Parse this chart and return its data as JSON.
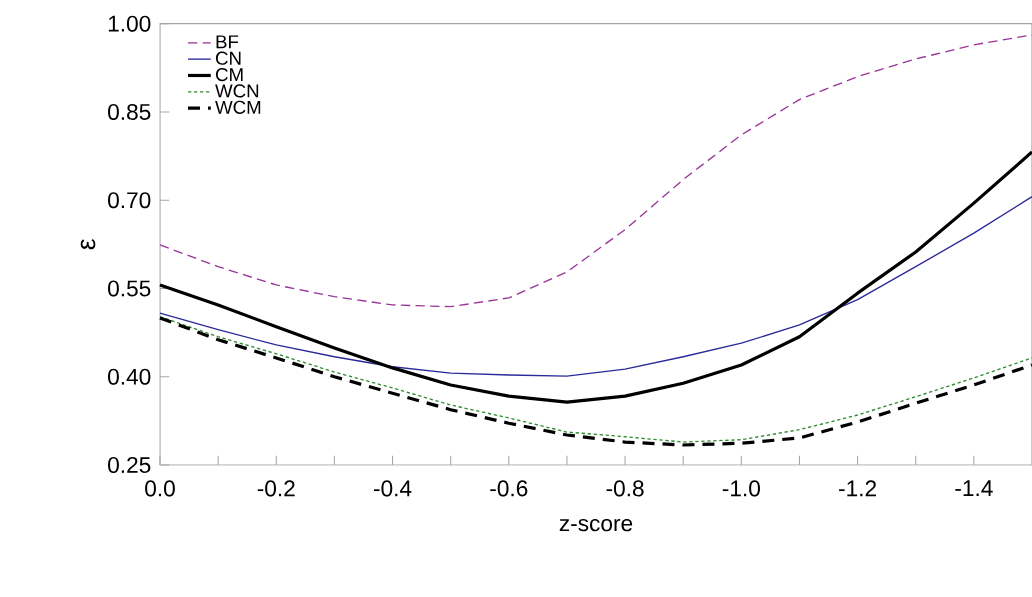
{
  "chart_data": {
    "type": "line",
    "xlabel": "z-score",
    "ylabel": "ε",
    "x": [
      0,
      -0.1,
      -0.2,
      -0.3,
      -0.4,
      -0.5,
      -0.6,
      -0.7,
      -0.8,
      -0.9,
      -1.0,
      -1.1,
      -1.2,
      -1.3,
      -1.4,
      -1.5
    ],
    "series": [
      {
        "name": "BF",
        "color": "#993399",
        "line_style": "dashed",
        "values": [
          0.624,
          0.587,
          0.556,
          0.536,
          0.522,
          0.519,
          0.534,
          0.578,
          0.65,
          0.735,
          0.811,
          0.871,
          0.91,
          0.94,
          0.964,
          0.981
        ]
      },
      {
        "name": "CN",
        "color": "#2a2a9a",
        "line_style": "solid",
        "values": [
          0.508,
          0.48,
          0.454,
          0.434,
          0.417,
          0.406,
          0.403,
          0.401,
          0.413,
          0.434,
          0.457,
          0.488,
          0.531,
          0.587,
          0.644,
          0.706
        ]
      },
      {
        "name": "CM",
        "color": "#000000",
        "line_style": "solid",
        "values": [
          0.556,
          0.522,
          0.485,
          0.449,
          0.415,
          0.386,
          0.367,
          0.357,
          0.367,
          0.389,
          0.42,
          0.468,
          0.542,
          0.612,
          0.695,
          0.782
        ]
      },
      {
        "name": "WCN",
        "color": "#2e8b2e",
        "line_style": "dotted",
        "values": [
          0.502,
          0.468,
          0.439,
          0.408,
          0.381,
          0.352,
          0.33,
          0.306,
          0.298,
          0.289,
          0.293,
          0.31,
          0.335,
          0.366,
          0.398,
          0.432
        ]
      },
      {
        "name": "WCM",
        "color": "#000000",
        "line_style": "dashed",
        "values": [
          0.5,
          0.463,
          0.432,
          0.4,
          0.372,
          0.344,
          0.321,
          0.301,
          0.289,
          0.284,
          0.287,
          0.296,
          0.323,
          0.355,
          0.386,
          0.42
        ]
      }
    ],
    "xlim": [
      0,
      -1.5
    ],
    "ylim": [
      0.25,
      1.0
    ],
    "xticks": [
      {
        "value": 0,
        "label": "0.0"
      },
      {
        "value": -0.1,
        "label": null
      },
      {
        "value": -0.2,
        "label": "-0.2"
      },
      {
        "value": -0.3,
        "label": null
      },
      {
        "value": -0.4,
        "label": "-0.4"
      },
      {
        "value": -0.5,
        "label": null
      },
      {
        "value": -0.6,
        "label": "-0.6"
      },
      {
        "value": -0.7,
        "label": null
      },
      {
        "value": -0.8,
        "label": "-0.8"
      },
      {
        "value": -0.9,
        "label": null
      },
      {
        "value": -1.0,
        "label": "-1.0"
      },
      {
        "value": -1.1,
        "label": null
      },
      {
        "value": -1.2,
        "label": "-1.2"
      },
      {
        "value": -1.3,
        "label": null
      },
      {
        "value": -1.4,
        "label": "-1.4"
      }
    ],
    "yticks": [
      {
        "value": 0.25,
        "label": "0.25"
      },
      {
        "value": 0.4,
        "label": "0.40"
      },
      {
        "value": 0.55,
        "label": "0.55"
      },
      {
        "value": 0.7,
        "label": "0.70"
      },
      {
        "value": 0.85,
        "label": "0.85"
      },
      {
        "value": 1.0,
        "label": "1.00"
      }
    ],
    "grid": false,
    "legend": "top left",
    "marker": "none"
  }
}
